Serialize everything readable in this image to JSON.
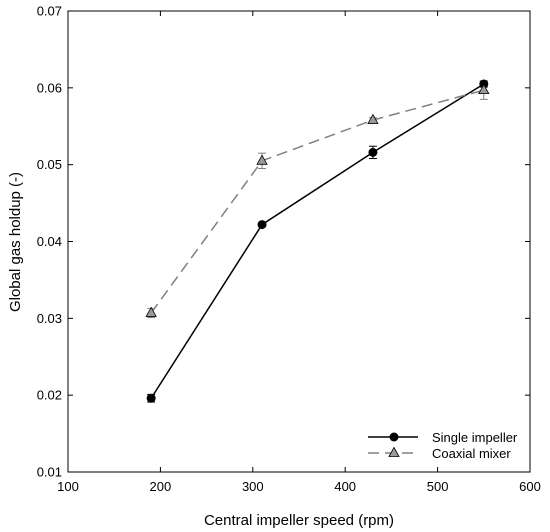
{
  "chart_data": {
    "type": "line",
    "title": "",
    "xlabel": "Central impeller speed (rpm)",
    "ylabel": "Global gas holdup (-)",
    "xlim": [
      100,
      600
    ],
    "ylim": [
      0.01,
      0.07
    ],
    "xticks": [
      100,
      200,
      300,
      400,
      500,
      600
    ],
    "yticks": [
      0.01,
      0.02,
      0.03,
      0.04,
      0.05,
      0.06,
      0.07
    ],
    "xtick_labels": [
      "100",
      "200",
      "300",
      "400",
      "500",
      "600"
    ],
    "ytick_labels": [
      "0.01",
      "0.02",
      "0.03",
      "0.04",
      "0.05",
      "0.06",
      "0.07"
    ],
    "grid": false,
    "legend_position": "bottom-right",
    "series": [
      {
        "name": "Single impeller",
        "x": [
          190,
          310,
          430,
          550
        ],
        "y": [
          0.0196,
          0.0422,
          0.0516,
          0.0605
        ],
        "err": [
          0.0005,
          0.0002,
          0.0008,
          0.0004
        ],
        "color": "#000000",
        "line": "solid",
        "marker": "circle"
      },
      {
        "name": "Coaxial mixer",
        "x": [
          190,
          310,
          430,
          550
        ],
        "y": [
          0.0307,
          0.0505,
          0.0558,
          0.0597
        ],
        "err": [
          0.0006,
          0.001,
          0.0003,
          0.0012
        ],
        "color": "#808080",
        "line": "dashed",
        "marker": "triangle"
      }
    ]
  }
}
